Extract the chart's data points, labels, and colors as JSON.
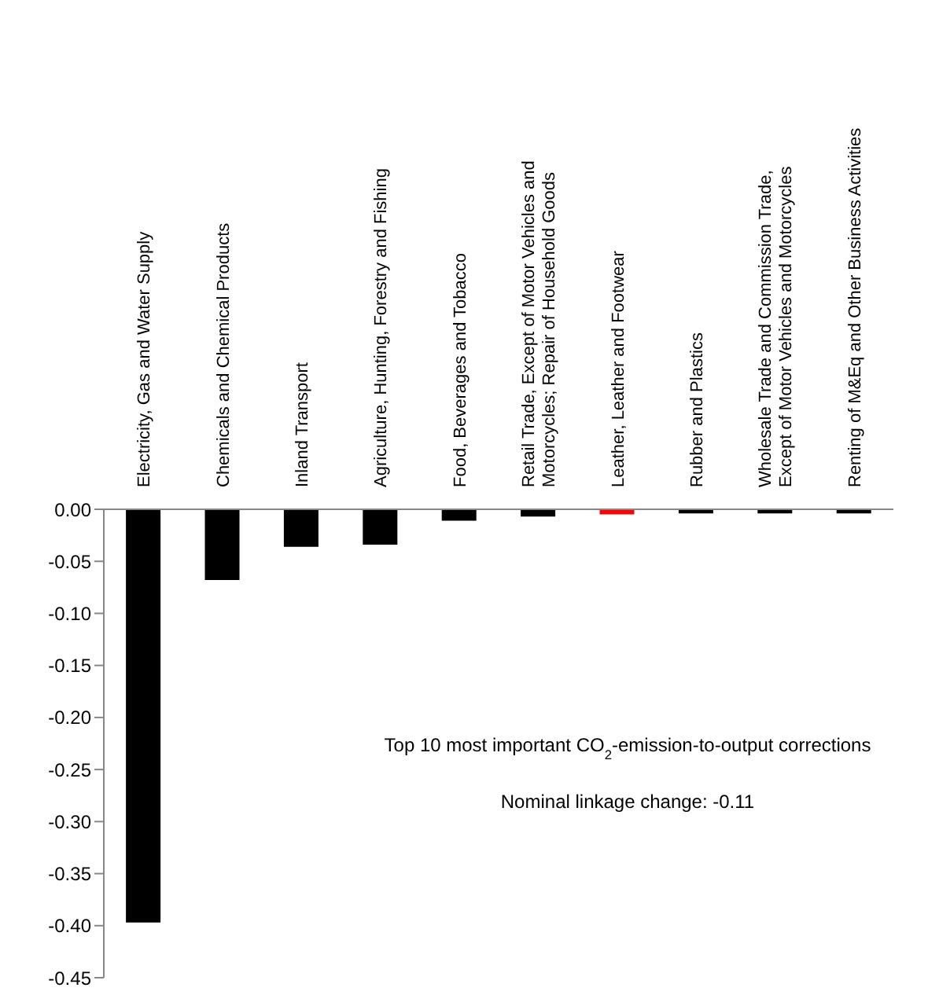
{
  "chart_data": {
    "type": "bar",
    "categories": [
      "Electricity, Gas and Water Supply",
      "Chemicals and Chemical Products",
      "Inland Transport",
      "Agriculture, Hunting, Forestry and Fishing",
      "Food, Beverages and Tobacco",
      "Retail Trade, Except of Motor Vehicles and Motorcycles; Repair of Household Goods",
      "Leather, Leather and Footwear",
      "Rubber and Plastics",
      "Wholesale Trade and Commission Trade, Except of Motor Vehicles and Motorcycles",
      "Renting of M&Eq and Other Business Activities"
    ],
    "values": [
      -0.397,
      -0.068,
      -0.036,
      -0.034,
      -0.011,
      -0.007,
      -0.005,
      -0.004,
      -0.004,
      -0.004
    ],
    "colors": [
      "#000000",
      "#000000",
      "#000000",
      "#000000",
      "#000000",
      "#000000",
      "#ff0000",
      "#000000",
      "#000000",
      "#000000"
    ],
    "ylim": [
      -0.45,
      0
    ],
    "yticks": [
      {
        "value": 0,
        "label": "0.00"
      },
      {
        "value": -0.05,
        "label": "-0.05"
      },
      {
        "value": -0.1,
        "label": "-0.10"
      },
      {
        "value": -0.15,
        "label": "-0.15"
      },
      {
        "value": -0.2,
        "label": "-0.20"
      },
      {
        "value": -0.25,
        "label": "-0.25"
      },
      {
        "value": -0.3,
        "label": "-0.30"
      },
      {
        "value": -0.35,
        "label": "-0.35"
      },
      {
        "value": -0.4,
        "label": "-0.40"
      },
      {
        "value": -0.45,
        "label": "-0.45"
      }
    ],
    "annotations": [
      "Top 10 most important CO$_{2}$-emission-to-output corrections",
      "Nominal linkage change: -0.11"
    ],
    "grid": false,
    "legend": false
  }
}
